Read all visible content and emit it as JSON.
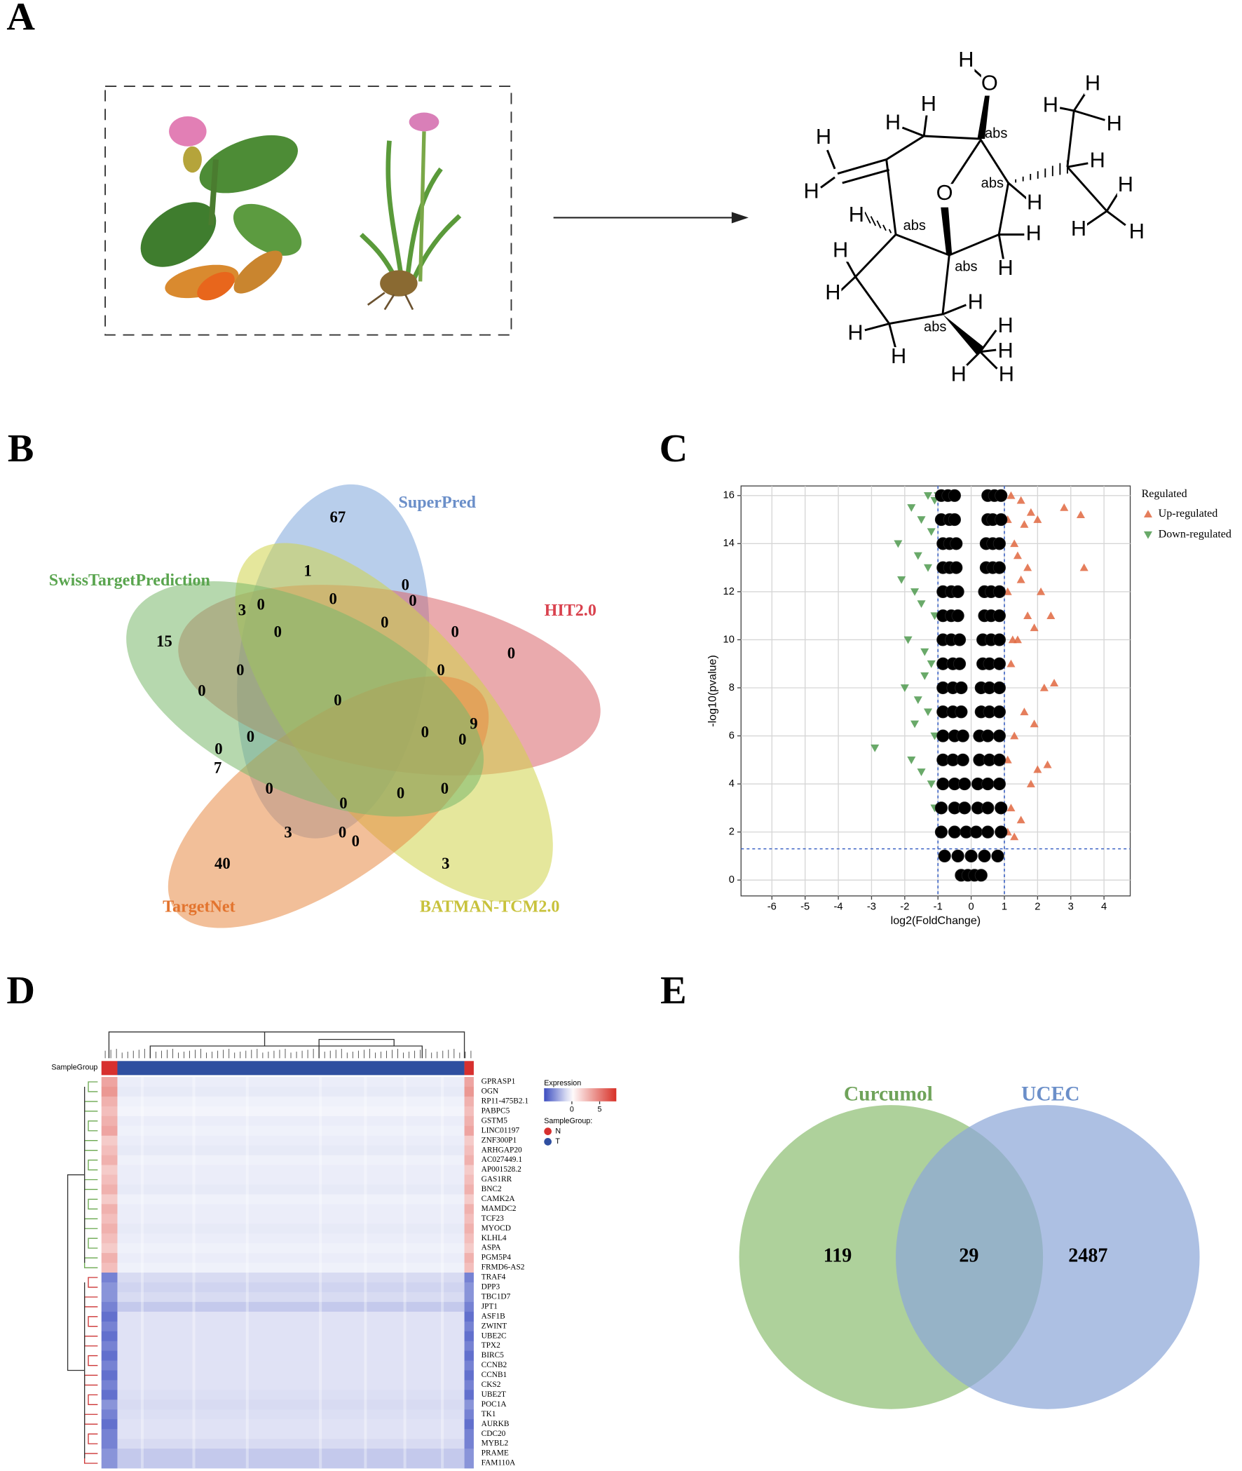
{
  "panel_labels": [
    "A",
    "B",
    "C",
    "D",
    "E"
  ],
  "panel_a": {
    "molecule_labels": [
      "H",
      "O",
      "H",
      "H",
      "abs",
      "H",
      "H",
      "H",
      "H",
      "H",
      "abs",
      "H",
      "H",
      "H",
      "O",
      "H",
      "abs",
      "H",
      "H",
      "H",
      "H",
      "abs",
      "H",
      "H",
      "H",
      "H",
      "abs",
      "H",
      "H",
      "H",
      "H",
      "H"
    ]
  },
  "chart_data": [
    {
      "type": "venn",
      "sets": [
        {
          "name": "SuperPred",
          "color": "#6b8fc9"
        },
        {
          "name": "HIT2.0",
          "color": "#d9424e"
        },
        {
          "name": "BATMAN-TCM2.0",
          "color": "#c8c23c"
        },
        {
          "name": "TargetNet",
          "color": "#e3742e"
        },
        {
          "name": "SwissTargetPrediction",
          "color": "#5aa54f"
        }
      ],
      "region_counts": [
        67,
        1,
        0,
        0,
        0,
        3,
        0,
        0,
        0,
        0,
        0,
        15,
        0,
        0,
        0,
        0,
        9,
        0,
        0,
        0,
        0,
        7,
        0,
        0,
        0,
        0,
        3,
        0,
        0,
        40,
        3
      ]
    },
    {
      "type": "scatter",
      "xlabel": "log2(FoldChange)",
      "ylabel": "-log10(pvalue)",
      "xlim": [
        -6.93,
        4.79
      ],
      "ylim": [
        -0.66,
        16.4
      ],
      "xticks": [
        -6,
        -5,
        -4,
        -3,
        -2,
        -1,
        0,
        1,
        2,
        3,
        4
      ],
      "yticks": [
        0,
        2,
        4,
        6,
        8,
        10,
        12,
        14,
        16
      ],
      "grid": true,
      "thresholds": {
        "x": [
          -1,
          1
        ],
        "y": 1.3
      },
      "legend": "right",
      "legend_title": "Regulated",
      "series": [
        {
          "name": "Up-regulated",
          "color": "#e0673f",
          "marker": "triangle-up",
          "x": [
            1.1,
            1.2,
            1.3,
            1.5,
            1.8,
            2.0,
            1.1,
            1.3,
            1.6,
            2.2,
            2.5,
            1.2,
            1.4,
            1.9,
            2.4,
            1.1,
            1.5,
            1.7,
            2.1,
            1.3,
            1.6,
            2.0,
            2.8,
            1.2,
            1.5,
            1.8,
            3.3,
            1.4,
            1.7,
            3.4,
            2.3,
            1.9,
            1.1,
            1.25
          ],
          "y": [
            2,
            3,
            1.8,
            2.5,
            4,
            4.6,
            5,
            6,
            7,
            8,
            8.2,
            9,
            10,
            10.5,
            11,
            12,
            12.5,
            13,
            12,
            14,
            14.8,
            15,
            15.5,
            16,
            15.8,
            15.3,
            15.2,
            13.5,
            11,
            13,
            4.8,
            6.5,
            15,
            10
          ]
        },
        {
          "name": "Down-regulated",
          "color": "#4f9a4f",
          "marker": "triangle-down",
          "x": [
            -1.1,
            -1.2,
            -1.5,
            -1.8,
            -1.1,
            -1.3,
            -1.6,
            -2.0,
            -1.2,
            -1.4,
            -1.9,
            -1.1,
            -1.5,
            -1.7,
            -2.1,
            -1.3,
            -1.6,
            -2.2,
            -1.2,
            -1.5,
            -1.8,
            -1.1,
            -1.3,
            -2.9,
            -1.4,
            -1.7,
            -1.0
          ],
          "y": [
            3,
            4,
            4.5,
            5,
            6,
            7,
            7.5,
            8,
            9,
            9.5,
            10,
            11,
            11.5,
            12,
            12.5,
            13,
            13.5,
            14,
            14.5,
            15,
            15.5,
            15.8,
            16,
            5.5,
            8.5,
            6.5,
            16
          ]
        },
        {
          "color": "#000000",
          "marker": "circle",
          "x": [
            -0.3,
            -0.1,
            0.1,
            0.3,
            -0.8,
            -0.4,
            0,
            0.4,
            0.8,
            -0.9,
            -0.5,
            -0.15,
            0.15,
            0.5,
            0.9,
            -0.9,
            -0.5,
            -0.2,
            0.2,
            0.5,
            0.9,
            -0.85,
            -0.5,
            -0.2,
            0.2,
            0.5,
            0.85,
            -0.85,
            -0.55,
            -0.25,
            0.25,
            0.55,
            0.85,
            -0.85,
            -0.5,
            -0.25,
            0.25,
            0.5,
            0.85,
            -0.85,
            -0.55,
            -0.3,
            0.3,
            0.55,
            0.85,
            -0.85,
            -0.55,
            -0.3,
            0.3,
            0.55,
            0.85,
            -0.85,
            -0.55,
            -0.35,
            0.35,
            0.55,
            0.85,
            -0.85,
            -0.6,
            -0.35,
            0.35,
            0.6,
            0.85,
            -0.85,
            -0.6,
            -0.4,
            0.4,
            0.6,
            0.85,
            -0.85,
            -0.6,
            -0.4,
            0.4,
            0.6,
            0.85,
            -0.85,
            -0.65,
            -0.45,
            0.45,
            0.65,
            0.85,
            -0.85,
            -0.65,
            -0.45,
            0.45,
            0.65,
            0.85,
            -0.9,
            -0.65,
            -0.5,
            0.5,
            0.65,
            0.9,
            -0.9,
            -0.7,
            -0.5,
            0.5,
            0.7,
            0.9
          ],
          "y": [
            0.2,
            0.2,
            0.2,
            0.2,
            1,
            1,
            1,
            1,
            1,
            2,
            2,
            2,
            2,
            2,
            2,
            3,
            3,
            3,
            3,
            3,
            3,
            4,
            4,
            4,
            4,
            4,
            4,
            5,
            5,
            5,
            5,
            5,
            5,
            6,
            6,
            6,
            6,
            6,
            6,
            7,
            7,
            7,
            7,
            7,
            7,
            8,
            8,
            8,
            8,
            8,
            8,
            9,
            9,
            9,
            9,
            9,
            9,
            10,
            10,
            10,
            10,
            10,
            10,
            11,
            11,
            11,
            11,
            11,
            11,
            12,
            12,
            12,
            12,
            12,
            12,
            13,
            13,
            13,
            13,
            13,
            13,
            14,
            14,
            14,
            14,
            14,
            14,
            15,
            15,
            15,
            15,
            15,
            15,
            16,
            16,
            16,
            16,
            16,
            16
          ]
        }
      ]
    },
    {
      "type": "heatmap",
      "sample_group_label": "SampleGroup",
      "legend_title": "Expression",
      "clim": [
        -5,
        8
      ],
      "cticks": [
        0,
        5
      ],
      "group_legend_title": "SampleGroup:",
      "groups": [
        {
          "name": "N",
          "color": "#d7302f"
        },
        {
          "name": "T",
          "color": "#2f4fa0"
        }
      ],
      "rows": [
        "GPRASP1",
        "OGN",
        "RP11-475B2.1",
        "PABPC5",
        "GSTM5",
        "LINC01197",
        "ZNF300P1",
        "ARHGAP20",
        "AC027449.1",
        "AP001528.2",
        "GAS1RR",
        "BNC2",
        "CAMK2A",
        "MAMDC2",
        "TCF23",
        "MYOCD",
        "KLHL4",
        "ASPA",
        "PGM5P4",
        "FRMD6-AS2",
        "TRAF4",
        "DPP3",
        "TBC1D7",
        "JPT1",
        "ASF1B",
        "ZWINT",
        "UBE2C",
        "TPX2",
        "BIRC5",
        "CCNB2",
        "CCNB1",
        "CKS2",
        "UBE2T",
        "POC1A",
        "TK1",
        "AURKB",
        "CDC20",
        "MYBL2",
        "PRAME",
        "FAM110A"
      ],
      "n_values": [
        3.5,
        4,
        3,
        2.5,
        3,
        3.5,
        2,
        2.5,
        3,
        2,
        2.5,
        3,
        2,
        3,
        2.5,
        3,
        2.5,
        2,
        3,
        2.5,
        -3.5,
        -3,
        -3,
        -3.5,
        -4,
        -3.5,
        -4,
        -3.5,
        -4,
        -3.5,
        -4,
        -3.5,
        -4,
        -3,
        -3.5,
        -4,
        -3.5,
        -3.5,
        -3,
        -3
      ],
      "t_values": [
        -0.5,
        -0.6,
        -0.4,
        -0.3,
        -0.5,
        -0.4,
        -0.5,
        -0.6,
        -0.4,
        -0.5,
        -0.5,
        -0.6,
        -0.4,
        -0.5,
        -0.5,
        -0.6,
        -0.5,
        -0.4,
        -0.5,
        -0.4,
        -1,
        -1.2,
        -1,
        -1.5,
        -0.8,
        -0.8,
        -0.8,
        -0.8,
        -0.8,
        -0.8,
        -0.8,
        -0.8,
        -0.9,
        -1,
        -0.9,
        -0.8,
        -0.8,
        -1,
        -1.5,
        -1.5
      ]
    },
    {
      "type": "venn",
      "sets": [
        {
          "name": "Curcumol",
          "color": "#6fa35a"
        },
        {
          "name": "UCEC",
          "color": "#6b8fc9"
        }
      ],
      "region_counts": [
        119,
        29,
        2487
      ]
    }
  ]
}
